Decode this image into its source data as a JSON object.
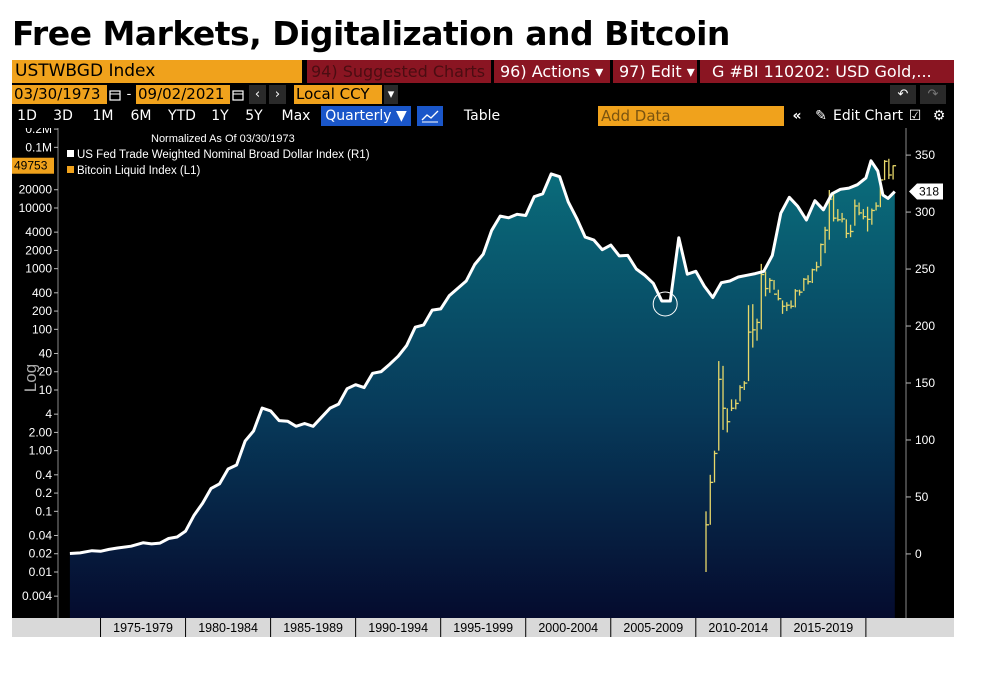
{
  "page_title": "Free Markets, Digitalization and Bitcoin",
  "toolbar": {
    "ticker": "USTWBGD Index",
    "suggested": "94) Suggested Charts",
    "actions": "96) Actions ▾",
    "edit": "97) Edit ▾",
    "gbi": "G #BI 110202: USD Gold,...",
    "start_date": "03/30/1973",
    "date_sep": "-",
    "end_date": "09/02/2021",
    "currency": "Local CCY",
    "periods": [
      "1D",
      "3D",
      "1M",
      "6M",
      "YTD",
      "1Y",
      "5Y",
      "Max"
    ],
    "frequency": "Quarterly ▼",
    "table_label": "Table",
    "add_data_placeholder": "Add Data",
    "edit_chart": "Edit Chart",
    "back_icon": "undo-icon",
    "forward_icon": "redo-icon",
    "calendar_icon": "calendar-icon",
    "line_chart_icon": "line-chart-icon",
    "collapse_icon": "double-chevron-left-icon",
    "pencil_icon": "pencil-icon",
    "settings_icon": "gear-icon"
  },
  "chart_data": {
    "type": "area",
    "legend": {
      "header": "Normalized As Of 03/30/1973",
      "placement": "top-left",
      "entries": [
        {
          "label": "US Fed Trade Weighted Nominal Broad Dollar Index (R1)",
          "color": "#ffffff"
        },
        {
          "label": "Bitcoin Liquid Index (L1)",
          "color": "#f0a21c"
        }
      ]
    },
    "left_axis": {
      "scale": "log",
      "label": "Log",
      "ticks": [
        "0.2M",
        "0.1M",
        "20000",
        "10000",
        "4000",
        "2000",
        "1000",
        "400",
        "200",
        "100",
        "40",
        "20",
        "10",
        "4",
        "2.00",
        "1.00",
        "0.4",
        "0.2",
        "0.1",
        "0.04",
        "0.02",
        "0.01",
        "0.004"
      ],
      "tick_values": [
        200000,
        100000,
        20000,
        10000,
        4000,
        2000,
        1000,
        400,
        200,
        100,
        40,
        20,
        10,
        4,
        2,
        1,
        0.4,
        0.2,
        0.1,
        0.04,
        0.02,
        0.01,
        0.004
      ],
      "last_value_label": "49753",
      "last_value": 49753
    },
    "right_axis": {
      "scale": "linear",
      "ticks": [
        "350",
        "300",
        "250",
        "200",
        "150",
        "100",
        "50",
        "0"
      ],
      "tick_values": [
        350,
        300,
        250,
        200,
        150,
        100,
        50,
        0
      ],
      "ylim": [
        -22,
        365
      ],
      "last_value_label": "318",
      "last_value": 318
    },
    "x_axis": {
      "range": [
        1972.5,
        2022.3
      ],
      "periods": [
        "1975-1979",
        "1980-1984",
        "1985-1989",
        "1990-1994",
        "1995-1999",
        "2000-2004",
        "2005-2009",
        "2010-2014",
        "2015-2019"
      ],
      "period_starts": [
        1975,
        1980,
        1985,
        1990,
        1995,
        2000,
        2005,
        2010,
        2015
      ]
    },
    "series": [
      {
        "name": "US Fed Trade Weighted Nominal Broad Dollar Index (R1)",
        "axis": "right",
        "style": "area",
        "x": [
          1973.2,
          1973.8,
          1974.5,
          1975.0,
          1975.5,
          1976.0,
          1976.8,
          1977.5,
          1978.0,
          1978.5,
          1979.0,
          1979.5,
          1980.0,
          1980.5,
          1981.0,
          1981.5,
          1982.0,
          1982.5,
          1983.0,
          1983.5,
          1984.0,
          1984.5,
          1985.0,
          1985.5,
          1986.0,
          1986.5,
          1987.0,
          1987.5,
          1988.0,
          1988.5,
          1989.0,
          1989.5,
          1990.0,
          1990.5,
          1991.0,
          1991.5,
          1992.0,
          1992.5,
          1993.0,
          1993.5,
          1994.0,
          1994.5,
          1995.0,
          1995.5,
          1996.0,
          1996.5,
          1997.0,
          1997.5,
          1998.0,
          1998.5,
          1999.0,
          1999.5,
          2000.0,
          2000.5,
          2001.0,
          2001.5,
          2002.0,
          2002.5,
          2003.0,
          2003.5,
          2004.0,
          2004.5,
          2005.0,
          2005.5,
          2006.0,
          2006.5,
          2007.0,
          2007.5,
          2008.0,
          2008.5,
          2009.0,
          2009.5,
          2010.0,
          2010.5,
          2011.0,
          2011.5,
          2012.0,
          2012.5,
          2013.0,
          2013.5,
          2014.0,
          2014.5,
          2015.0,
          2015.5,
          2016.0,
          2016.5,
          2017.0,
          2017.5,
          2018.0,
          2018.5,
          2019.0,
          2019.5,
          2020.0,
          2020.3,
          2020.7,
          2021.0,
          2021.3,
          2021.7
        ],
        "values": [
          0.4,
          0.9,
          2.8,
          2.3,
          4.0,
          5.2,
          6.8,
          9.8,
          8.8,
          9.5,
          13.5,
          14.9,
          20.0,
          34.0,
          44.5,
          57.5,
          61.5,
          74.5,
          78.0,
          99.0,
          108.0,
          128.0,
          125.5,
          117.0,
          116.5,
          112.0,
          114.5,
          112.0,
          120.0,
          128.0,
          131.5,
          145.0,
          148.5,
          146.0,
          158.5,
          160.0,
          166.5,
          173.5,
          183.0,
          199.0,
          201.0,
          214.0,
          215.0,
          226.5,
          233.0,
          239.5,
          254.0,
          263.0,
          284.0,
          296.5,
          295.0,
          298.0,
          297.0,
          313.5,
          316.0,
          333.5,
          331.0,
          309.0,
          294.5,
          278.0,
          275.5,
          267.0,
          271.0,
          261.5,
          262.0,
          250.0,
          244.5,
          237.5,
          222.0,
          222.0,
          277.5,
          245.5,
          248.0,
          235.0,
          225.0,
          238.0,
          239.5,
          243.0,
          244.5,
          246.0,
          248.0,
          262.0,
          299.0,
          313.0,
          305.0,
          293.0,
          310.0,
          302.0,
          316.0,
          320.0,
          321.0,
          324.0,
          330.0,
          345.0,
          336.0,
          315.0,
          312.0,
          318.0
        ]
      },
      {
        "name": "Bitcoin Liquid Index (L1)",
        "axis": "left",
        "style": "ohlc",
        "x": [
          2010.6,
          2010.85,
          2011.1,
          2011.35,
          2011.6,
          2011.85,
          2012.1,
          2012.35,
          2012.6,
          2012.85,
          2013.1,
          2013.35,
          2013.6,
          2013.85,
          2014.1,
          2014.35,
          2014.6,
          2014.85,
          2015.1,
          2015.35,
          2015.6,
          2015.85,
          2016.1,
          2016.35,
          2016.6,
          2016.85,
          2017.1,
          2017.35,
          2017.6,
          2017.85,
          2018.1,
          2018.35,
          2018.6,
          2018.85,
          2019.1,
          2019.35,
          2019.6,
          2019.85,
          2020.1,
          2020.35,
          2020.6,
          2020.85,
          2021.1,
          2021.35,
          2021.6
        ],
        "high": [
          0.1,
          0.4,
          1.0,
          30,
          25,
          5,
          7,
          7,
          12,
          14,
          250,
          260,
          150,
          1200,
          900,
          700,
          650,
          450,
          300,
          280,
          300,
          460,
          450,
          700,
          780,
          1000,
          1300,
          2600,
          4900,
          19800,
          17000,
          9600,
          8300,
          6500,
          5300,
          13800,
          12300,
          9600,
          10500,
          9800,
          12400,
          29300,
          61700,
          64800,
          50400
        ],
        "low": [
          0.01,
          0.06,
          0.3,
          1.0,
          2.2,
          2.0,
          4.5,
          4.8,
          6.5,
          10.0,
          14,
          50,
          65,
          100,
          350,
          400,
          450,
          300,
          180,
          200,
          220,
          230,
          360,
          430,
          550,
          580,
          900,
          1100,
          1800,
          3000,
          6000,
          6000,
          5800,
          3200,
          3300,
          5100,
          7600,
          6500,
          4100,
          5300,
          9100,
          10300,
          28800,
          30000,
          29500
        ],
        "close": [
          0.06,
          0.3,
          0.9,
          15,
          5,
          3,
          5,
          6,
          11,
          13,
          90,
          98,
          130,
          800,
          470,
          640,
          380,
          320,
          240,
          250,
          240,
          430,
          410,
          670,
          610,
          960,
          1070,
          2500,
          4300,
          14000,
          6800,
          6400,
          6600,
          3800,
          4100,
          10800,
          8300,
          7200,
          6500,
          9100,
          10800,
          29000,
          58800,
          35000,
          49753
        ]
      }
    ]
  }
}
